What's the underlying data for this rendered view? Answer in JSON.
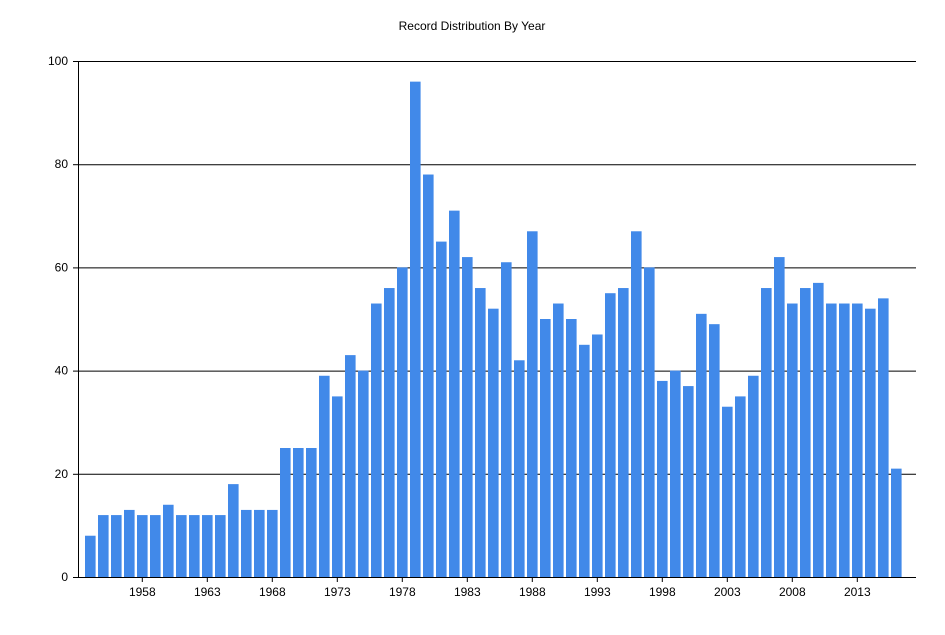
{
  "chart_data": {
    "type": "bar",
    "title": "Record Distribution By Year",
    "xlabel": "",
    "ylabel": "",
    "ylim": [
      0,
      100
    ],
    "yticks": [
      0,
      20,
      40,
      60,
      80,
      100
    ],
    "grid": true,
    "legend": "none",
    "bar_color": "#4189e9",
    "x_tick_labels": [
      "1958",
      "1963",
      "1968",
      "1973",
      "1978",
      "1983",
      "1988",
      "1993",
      "1998",
      "2003",
      "2008",
      "2013"
    ],
    "categories": [
      1954,
      1955,
      1956,
      1957,
      1958,
      1959,
      1960,
      1961,
      1962,
      1963,
      1964,
      1965,
      1966,
      1967,
      1968,
      1969,
      1970,
      1971,
      1972,
      1973,
      1974,
      1975,
      1976,
      1977,
      1978,
      1979,
      1980,
      1981,
      1982,
      1983,
      1984,
      1985,
      1986,
      1987,
      1988,
      1989,
      1990,
      1991,
      1992,
      1993,
      1994,
      1995,
      1996,
      1997,
      1998,
      1999,
      2000,
      2001,
      2002,
      2003,
      2004,
      2005,
      2006,
      2007,
      2008,
      2009,
      2010,
      2011,
      2012,
      2013,
      2014,
      2015,
      2016
    ],
    "values": [
      8,
      12,
      12,
      13,
      12,
      12,
      14,
      12,
      12,
      12,
      12,
      18,
      13,
      13,
      13,
      25,
      25,
      25,
      39,
      35,
      43,
      40,
      53,
      56,
      60,
      96,
      78,
      65,
      71,
      62,
      56,
      52,
      61,
      42,
      67,
      50,
      53,
      50,
      45,
      47,
      55,
      56,
      67,
      60,
      38,
      40,
      37,
      51,
      49,
      33,
      35,
      39,
      56,
      62,
      53,
      56,
      57,
      53,
      53,
      53,
      52,
      54,
      21
    ]
  }
}
